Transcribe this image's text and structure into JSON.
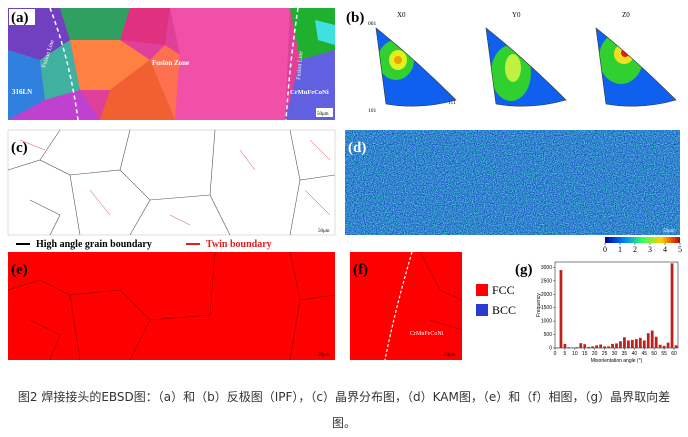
{
  "figure": {
    "a": {
      "label": "(a)",
      "left": "316LN",
      "fusion_lines": [
        "Fusion Line",
        "Fusion Line"
      ],
      "center": "Fusion Zone",
      "right": "CrMnFeCoNi",
      "scale": "50μm"
    },
    "b": {
      "label": "(b)",
      "titles": [
        "X0",
        "Y0",
        "Z0"
      ],
      "corners": [
        "001",
        "101",
        "111"
      ]
    },
    "c": {
      "label": "(c)",
      "scale": "50μm",
      "legend": [
        {
          "name": "High angle grain boundary",
          "color": "#000000"
        },
        {
          "name": "Twin boundary",
          "color": "#e02020"
        }
      ]
    },
    "d": {
      "label": "(d)",
      "scale": "50μm",
      "colorbar_lim": [
        0,
        5
      ],
      "colorbar_ticks": [
        0,
        1,
        2,
        3,
        4,
        5
      ]
    },
    "e": {
      "label": "(e)",
      "scale": "50μm"
    },
    "f": {
      "label": "(f)",
      "text": "CrMnFeCoNi",
      "scale": "20μm"
    },
    "phase_legend": [
      {
        "name": "FCC",
        "color": "#ff0000"
      },
      {
        "name": "BCC",
        "color": "#2b3bd0"
      }
    ],
    "g": {
      "label": "(g)"
    }
  },
  "chart_data": {
    "type": "histogram",
    "xlabel": "Misorientation angle (°)",
    "ylabel": "Frequency",
    "bins": [
      0,
      2,
      4,
      6,
      8,
      10,
      12,
      14,
      16,
      18,
      20,
      22,
      24,
      26,
      28,
      30,
      32,
      34,
      36,
      38,
      40,
      42,
      44,
      46,
      48,
      50,
      52,
      54,
      56,
      58,
      60,
      62
    ],
    "values": [
      20,
      2900,
      150,
      30,
      20,
      30,
      180,
      140,
      40,
      60,
      100,
      130,
      60,
      60,
      150,
      170,
      250,
      400,
      280,
      300,
      330,
      380,
      280,
      550,
      650,
      420,
      120,
      80,
      200,
      3150,
      100
    ],
    "color": "#c0201a",
    "xlim": [
      0,
      62
    ],
    "ylim": [
      0,
      3200
    ],
    "xticks": [
      0,
      5,
      10,
      15,
      20,
      25,
      30,
      35,
      40,
      45,
      50,
      55,
      60
    ],
    "yticks": [
      0,
      500,
      1000,
      1500,
      2000,
      2500,
      3000
    ]
  },
  "caption": "图2 焊接接头的EBSD图：（a）和（b）反极图（IPF），（c）晶界分布图，（d）KAM图，（e）和（f）相图，（g）晶界取向差图。"
}
